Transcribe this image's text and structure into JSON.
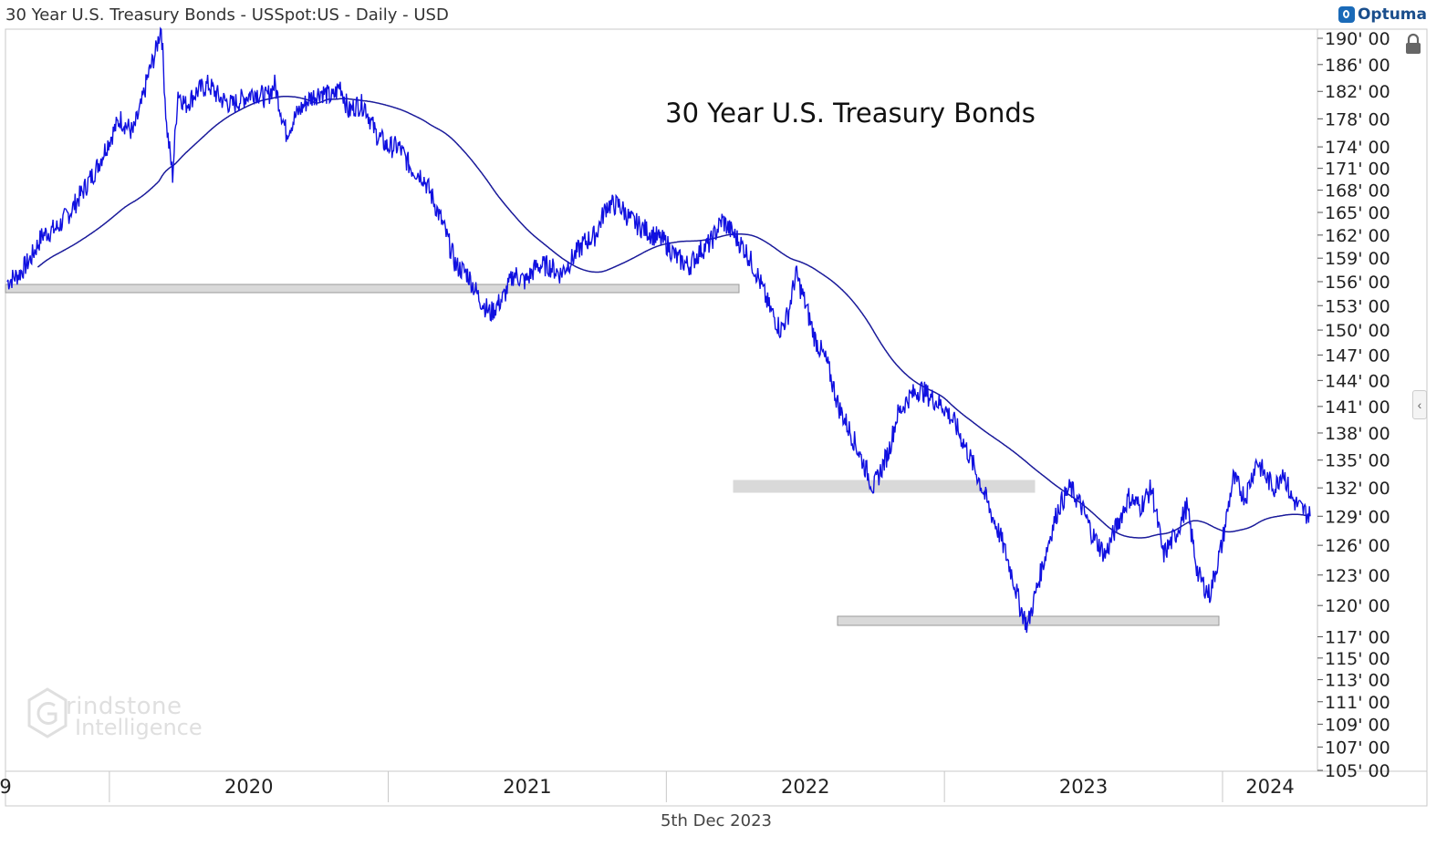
{
  "header": {
    "title": "30 Year U.S. Treasury Bonds - USSpot:US - Daily - USD",
    "logo_text": "Optuma"
  },
  "footer": {
    "date": "5th Dec 2023"
  },
  "watermark": {
    "line1": "rindstone",
    "line2": "Intelligence"
  },
  "colors": {
    "price": "#1010e0",
    "ma": "#1a1a9a",
    "zone_fill": "#d9d9d9",
    "circle": "#5f8c1c",
    "arrow": "#5b8fd6"
  },
  "chart_data": {
    "type": "line",
    "title": "30 Year U.S. Treasury Bonds",
    "xlabel": "",
    "ylabel": "",
    "x_ticks": [
      "9",
      "2020",
      "2021",
      "2022",
      "2023",
      "2024"
    ],
    "y_ticks": [
      "190' 00",
      "186' 00",
      "182' 00",
      "178' 00",
      "174' 00",
      "171' 00",
      "168' 00",
      "165' 00",
      "162' 00",
      "159' 00",
      "156' 00",
      "153' 00",
      "150' 00",
      "147' 00",
      "144' 00",
      "141' 00",
      "138' 00",
      "135' 00",
      "132' 00",
      "129' 00",
      "126' 00",
      "123' 00",
      "120' 00",
      "117' 00",
      "115' 00",
      "113' 00",
      "111' 00",
      "109' 00",
      "107' 00",
      "105' 00"
    ],
    "y_scale": "log",
    "ylim": [
      105,
      191
    ],
    "xlim": [
      "2019-08-20",
      "2024-04-25"
    ],
    "series": [
      {
        "kind": "price",
        "points": [
          [
            "2019-08-20",
            156
          ],
          [
            "2019-09-05",
            157
          ],
          [
            "2019-09-20",
            159
          ],
          [
            "2019-10-05",
            162
          ],
          [
            "2019-10-25",
            163
          ],
          [
            "2019-11-10",
            165
          ],
          [
            "2019-11-28",
            168
          ],
          [
            "2019-12-15",
            171
          ],
          [
            "2020-01-01",
            175
          ],
          [
            "2020-01-15",
            178
          ],
          [
            "2020-02-01",
            176
          ],
          [
            "2020-02-12",
            180
          ],
          [
            "2020-02-20",
            184
          ],
          [
            "2020-03-02",
            188
          ],
          [
            "2020-03-09",
            192
          ],
          [
            "2020-03-16",
            177
          ],
          [
            "2020-03-24",
            170
          ],
          [
            "2020-03-31",
            182
          ],
          [
            "2020-04-10",
            180
          ],
          [
            "2020-04-25",
            182
          ],
          [
            "2020-05-10",
            183
          ],
          [
            "2020-05-25",
            181
          ],
          [
            "2020-06-10",
            180
          ],
          [
            "2020-06-25",
            181
          ],
          [
            "2020-07-10",
            182
          ],
          [
            "2020-07-25",
            181
          ],
          [
            "2020-08-05",
            183
          ],
          [
            "2020-08-20",
            176
          ],
          [
            "2020-09-05",
            179
          ],
          [
            "2020-09-20",
            181
          ],
          [
            "2020-10-05",
            182
          ],
          [
            "2020-10-20",
            181
          ],
          [
            "2020-10-30",
            183
          ],
          [
            "2020-11-10",
            179
          ],
          [
            "2020-11-20",
            180
          ],
          [
            "2020-12-01",
            180
          ],
          [
            "2020-12-15",
            176
          ],
          [
            "2020-12-31",
            174
          ],
          [
            "2021-01-15",
            174
          ],
          [
            "2021-01-31",
            171
          ],
          [
            "2021-02-15",
            170
          ],
          [
            "2021-02-28",
            167
          ],
          [
            "2021-03-15",
            163
          ],
          [
            "2021-03-31",
            158
          ],
          [
            "2021-04-15",
            157
          ],
          [
            "2021-04-30",
            154
          ],
          [
            "2021-05-15",
            152
          ],
          [
            "2021-06-01",
            154
          ],
          [
            "2021-06-15",
            157
          ],
          [
            "2021-06-30",
            156
          ],
          [
            "2021-07-15",
            158
          ],
          [
            "2021-07-31",
            158
          ],
          [
            "2021-08-15",
            157
          ],
          [
            "2021-08-31",
            159
          ],
          [
            "2021-09-15",
            161
          ],
          [
            "2021-09-30",
            162
          ],
          [
            "2021-10-15",
            166
          ],
          [
            "2021-10-31",
            166
          ],
          [
            "2021-11-15",
            164
          ],
          [
            "2021-11-30",
            163
          ],
          [
            "2021-12-15",
            162
          ],
          [
            "2021-12-31",
            161
          ],
          [
            "2022-01-15",
            159
          ],
          [
            "2022-01-31",
            158
          ],
          [
            "2022-02-15",
            160
          ],
          [
            "2022-02-28",
            161
          ],
          [
            "2022-03-15",
            164
          ],
          [
            "2022-03-31",
            162
          ],
          [
            "2022-04-15",
            160
          ],
          [
            "2022-04-30",
            157
          ],
          [
            "2022-05-15",
            153
          ],
          [
            "2022-05-31",
            150
          ],
          [
            "2022-06-10",
            152
          ],
          [
            "2022-06-20",
            157
          ],
          [
            "2022-06-30",
            154
          ],
          [
            "2022-07-15",
            149
          ],
          [
            "2022-07-31",
            146
          ],
          [
            "2022-08-15",
            141
          ],
          [
            "2022-08-31",
            138
          ],
          [
            "2022-09-15",
            135
          ],
          [
            "2022-09-30",
            132
          ],
          [
            "2022-10-10",
            134
          ],
          [
            "2022-10-20",
            136
          ],
          [
            "2022-10-31",
            140
          ],
          [
            "2022-11-15",
            142
          ],
          [
            "2022-11-30",
            143
          ],
          [
            "2022-12-15",
            142
          ],
          [
            "2022-12-31",
            141
          ],
          [
            "2023-01-15",
            139
          ],
          [
            "2023-01-31",
            136
          ],
          [
            "2023-02-15",
            133
          ],
          [
            "2023-02-28",
            130
          ],
          [
            "2023-03-15",
            127
          ],
          [
            "2023-03-31",
            123
          ],
          [
            "2023-04-10",
            120
          ],
          [
            "2023-04-20",
            118
          ],
          [
            "2023-04-30",
            121
          ],
          [
            "2023-05-10",
            124
          ],
          [
            "2023-05-20",
            127
          ],
          [
            "2023-05-31",
            130
          ],
          [
            "2023-06-15",
            132
          ],
          [
            "2023-06-30",
            130
          ],
          [
            "2023-07-15",
            127
          ],
          [
            "2023-07-31",
            125
          ],
          [
            "2023-08-15",
            128
          ],
          [
            "2023-08-31",
            131
          ],
          [
            "2023-09-15",
            130
          ],
          [
            "2023-09-30",
            132
          ],
          [
            "2023-10-15",
            125
          ],
          [
            "2023-10-31",
            127
          ],
          [
            "2023-11-15",
            130
          ],
          [
            "2023-11-30",
            123
          ],
          [
            "2023-12-15",
            121
          ],
          [
            "2023-12-31",
            126
          ],
          [
            "2024-01-15",
            133
          ],
          [
            "2024-01-31",
            131
          ],
          [
            "2024-02-15",
            135
          ],
          [
            "2024-02-28",
            133
          ],
          [
            "2024-03-10",
            132
          ],
          [
            "2024-03-20",
            134
          ],
          [
            "2024-03-31",
            131
          ],
          [
            "2024-04-10",
            130
          ],
          [
            "2024-04-25",
            129
          ]
        ]
      }
    ]
  }
}
